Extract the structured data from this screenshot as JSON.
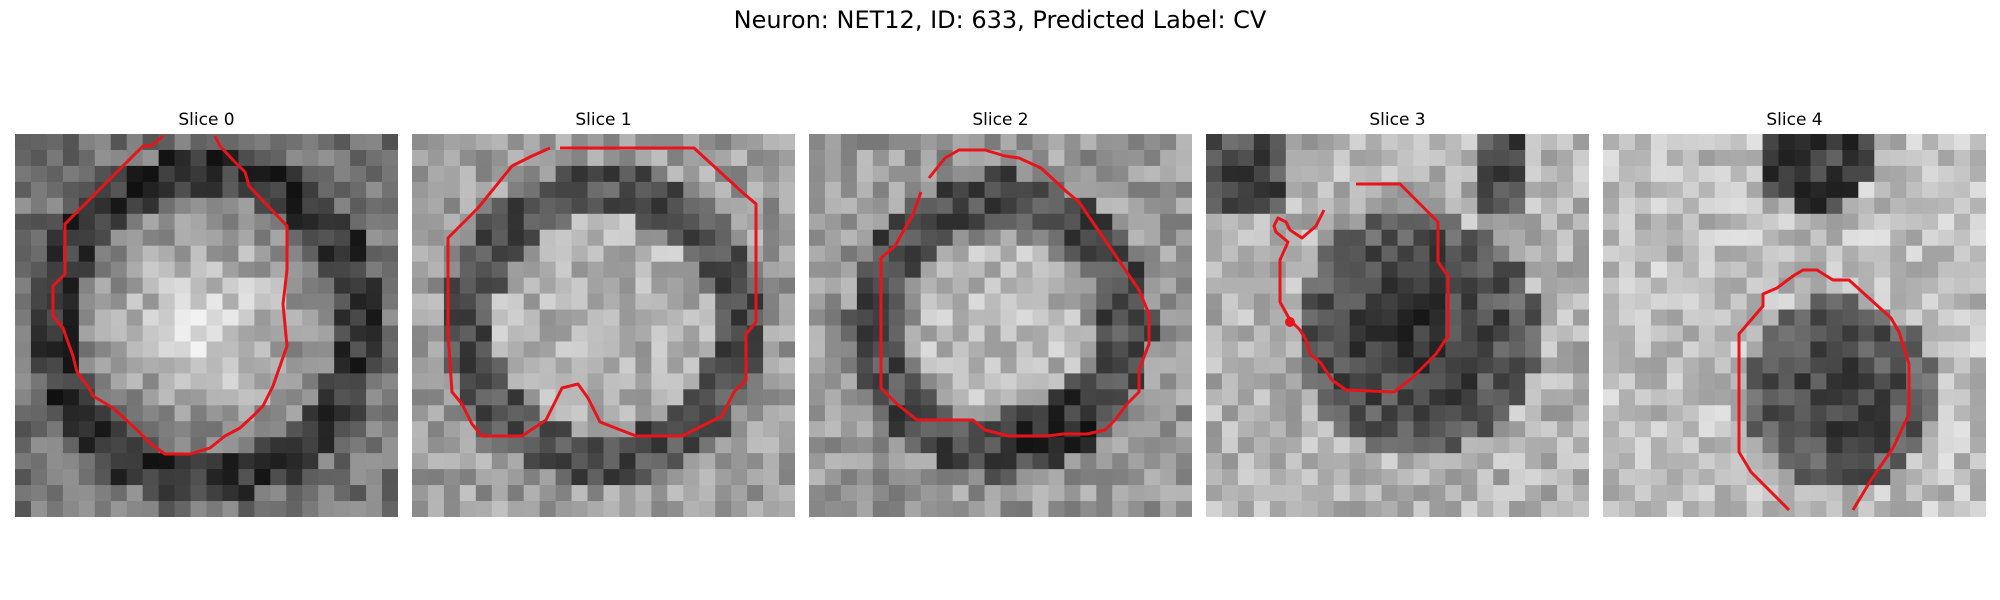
{
  "figure": {
    "title": "Neuron: NET12, ID: 633, Predicted Label: CV"
  },
  "panels": [
    {
      "title": "Slice 0",
      "pattern": "bright-center",
      "seed": 11
    },
    {
      "title": "Slice 1",
      "pattern": "ring",
      "seed": 23
    },
    {
      "title": "Slice 2",
      "pattern": "ring-dark-lower",
      "seed": 37
    },
    {
      "title": "Slice 3",
      "pattern": "dark-center-cross",
      "seed": 41
    },
    {
      "title": "Slice 4",
      "pattern": "dark-lower",
      "seed": 59
    }
  ],
  "colors": {
    "contour": "#e8141a",
    "background": "#ffffff"
  }
}
